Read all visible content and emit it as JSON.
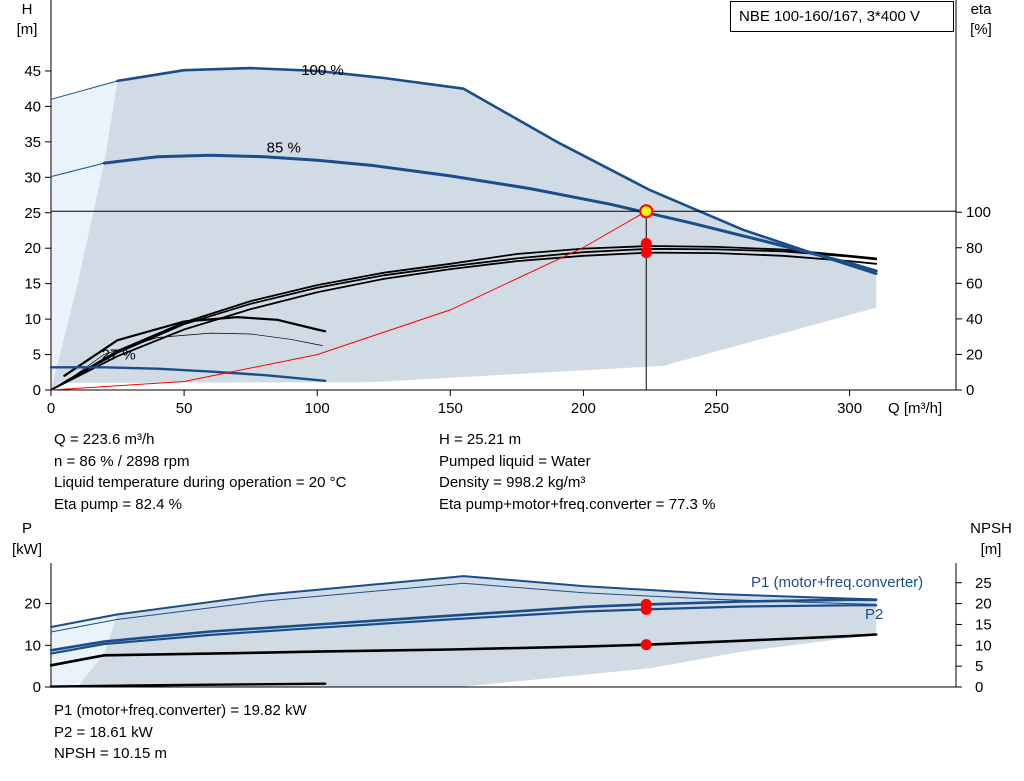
{
  "title": "NBE 100-160/167, 3*400 V",
  "info_left": [
    "Q = 223.6 m³/h",
    "n = 86 % / 2898 rpm",
    "Liquid temperature during operation = 20 °C",
    "Eta pump = 82.4 %"
  ],
  "info_right": [
    "H = 25.21 m",
    "Pumped liquid = Water",
    "Density = 998.2 kg/m³",
    "Eta pump+motor+freq.converter = 77.3 %"
  ],
  "info_bottom": [
    "P1 (motor+freq.converter) = 19.82 kW",
    "P2 = 18.61 kW",
    "NPSH = 10.15 m"
  ],
  "colors": {
    "curve_blue": "#1a4e8a",
    "fill_gray": "#d1dbe6",
    "fill_light": "#eaf3fb",
    "efficiency_black": "#000000",
    "system_red": "#ff0000",
    "operating_point": "#ff0000",
    "marker_fill": "#ffff00"
  },
  "chart_data": [
    {
      "type": "line",
      "panel": "head-efficiency",
      "xlabel": "Q [m³/h]",
      "ylabel": [
        "H",
        "[m]"
      ],
      "y2label": [
        "eta",
        "[%]"
      ],
      "xlim": [
        0,
        340
      ],
      "ylim": [
        0,
        50
      ],
      "y2lim": [
        0,
        100
      ],
      "xticks": [
        0,
        50,
        100,
        150,
        200,
        250,
        300
      ],
      "yticks": [
        0,
        5,
        10,
        15,
        20,
        25,
        30,
        35,
        40,
        45
      ],
      "y2ticks": [
        0,
        20,
        40,
        60,
        80,
        100
      ],
      "grid": false,
      "operating_point": {
        "x": 223.6,
        "y": 25.21
      },
      "speed_curves": [
        {
          "label": "100 %",
          "x": [
            0,
            25,
            50,
            75,
            100,
            125,
            155,
            190,
            225,
            260,
            290,
            310
          ],
          "y": [
            41,
            43.6,
            45.1,
            45.4,
            45.0,
            44.0,
            42.5,
            35.0,
            28.2,
            22.6,
            18.8,
            16.4
          ]
        },
        {
          "label": "85 %",
          "x": [
            0,
            20,
            40,
            60,
            80,
            100,
            120,
            150,
            180,
            210,
            240,
            270,
            300,
            310
          ],
          "y": [
            30.1,
            32.0,
            32.9,
            33.1,
            32.9,
            32.4,
            31.7,
            30.2,
            28.4,
            26.2,
            23.6,
            20.8,
            17.9,
            16.8
          ]
        },
        {
          "label": "27 %",
          "x": [
            0,
            20,
            40,
            60,
            80,
            103
          ],
          "y": [
            3.2,
            3.2,
            3.0,
            2.6,
            2.1,
            1.3
          ]
        }
      ],
      "efficiency_curves": [
        {
          "x": [
            0,
            25,
            50,
            75,
            100,
            125,
            150,
            175,
            200,
            225,
            250,
            275,
            300,
            310
          ],
          "y": [
            0,
            22,
            38,
            50,
            59,
            66,
            71,
            76.5,
            79.5,
            81,
            80.5,
            79,
            75.5,
            74
          ]
        },
        {
          "x": [
            0,
            25,
            50,
            75,
            100,
            125,
            150,
            175,
            200,
            225,
            250,
            275,
            300,
            310
          ],
          "y": [
            0,
            19,
            34,
            45.5,
            55,
            62.5,
            68,
            72.5,
            75.5,
            77.3,
            77,
            75.5,
            72.5,
            71
          ]
        },
        {
          "x": [
            0,
            25,
            50,
            75,
            100,
            125,
            150,
            175,
            200,
            225,
            250,
            275,
            300,
            310
          ],
          "y": [
            0,
            21,
            37,
            48.5,
            57.5,
            64.5,
            69.5,
            74,
            77.5,
            79.4,
            79.1,
            78,
            75,
            73.5
          ]
        },
        {
          "x": [
            5,
            20,
            40,
            60,
            75,
            90,
            102
          ],
          "y": [
            4,
            20,
            29.5,
            32,
            31.5,
            28.5,
            25
          ]
        },
        {
          "x": [
            5,
            25,
            50,
            70,
            85,
            100,
            103
          ],
          "y": [
            8,
            28,
            38.5,
            41,
            39.5,
            34,
            33
          ]
        }
      ],
      "system_curve": {
        "x": [
          0,
          50,
          100,
          150,
          200,
          223.6
        ],
        "y": [
          0,
          1.2,
          5.0,
          11.3,
          20.1,
          25.21
        ]
      },
      "operating_markers_eta": [
        82.4,
        77.3
      ]
    },
    {
      "type": "line",
      "panel": "power-npsh",
      "ylabel": [
        "P",
        "[kW]"
      ],
      "y2label": [
        "NPSH",
        "[m]"
      ],
      "xlim": [
        0,
        340
      ],
      "ylim": [
        0,
        30
      ],
      "y2lim": [
        0,
        30
      ],
      "yticks": [
        0,
        10,
        20
      ],
      "y2ticks": [
        0,
        5,
        10,
        15,
        20,
        25
      ],
      "grid": false,
      "series_labels": [
        "P1 (motor+freq.converter)",
        "P2"
      ],
      "p1_100": {
        "x": [
          0,
          25,
          80,
          155,
          200,
          250,
          300,
          310
        ],
        "y": [
          14.4,
          17.4,
          22.1,
          26.6,
          24.2,
          22.3,
          21.2,
          21.0
        ]
      },
      "p2_100": {
        "x": [
          0,
          25,
          80,
          155,
          200,
          250,
          300,
          310
        ],
        "y": [
          13.2,
          16.2,
          20.6,
          24.9,
          22.6,
          21.0,
          20.0,
          19.8
        ]
      },
      "p1_85": {
        "x": [
          0,
          20,
          60,
          100,
          150,
          200,
          223.6,
          260,
          300,
          310
        ],
        "y": [
          8.8,
          10.9,
          13.3,
          15.0,
          17.1,
          19.2,
          19.82,
          20.5,
          20.9,
          20.9
        ]
      },
      "p2_85": {
        "x": [
          0,
          20,
          60,
          100,
          150,
          200,
          223.6,
          260,
          300,
          310
        ],
        "y": [
          8.0,
          10.3,
          12.5,
          14.2,
          16.2,
          18.1,
          18.61,
          19.3,
          19.6,
          19.6
        ]
      },
      "npsh": {
        "x": [
          0,
          20,
          60,
          100,
          150,
          200,
          223.6,
          260,
          300,
          310
        ],
        "y": [
          5.2,
          7.6,
          8.0,
          8.5,
          9.0,
          9.7,
          10.15,
          11.1,
          12.2,
          12.6
        ]
      },
      "p_27": {
        "x": [
          0,
          50,
          103
        ],
        "y": [
          0.1,
          0.5,
          0.8
        ]
      },
      "operating_markers": [
        19.82,
        18.61,
        10.15
      ]
    }
  ]
}
